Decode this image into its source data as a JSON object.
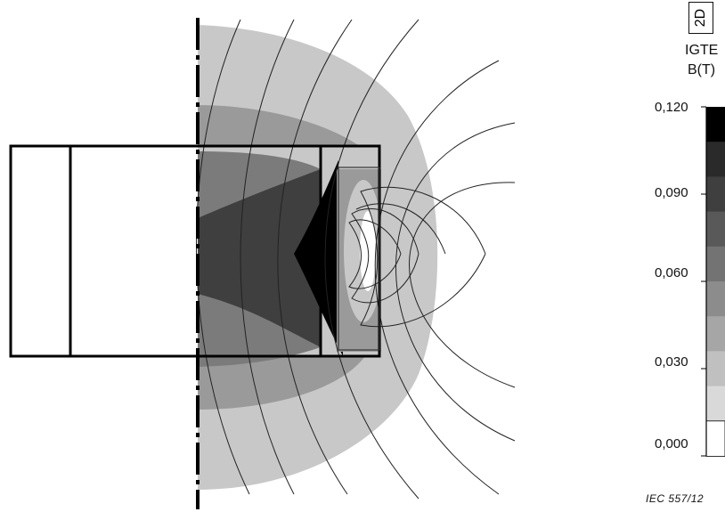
{
  "header": {
    "tag": "2D",
    "code": "IGTE",
    "quantity": "B(T)"
  },
  "scale": {
    "ticks": [
      "0,120",
      "0,090",
      "0,060",
      "0,030",
      "0,000"
    ],
    "bands": [
      "#000000",
      "#2a2a2a",
      "#3f3f3f",
      "#595959",
      "#737373",
      "#8c8c8c",
      "#a6a6a6",
      "#c0c0c0",
      "#d9d9d9",
      "#ffffff"
    ]
  },
  "footer": {
    "caption": "IEC   557/12"
  }
}
